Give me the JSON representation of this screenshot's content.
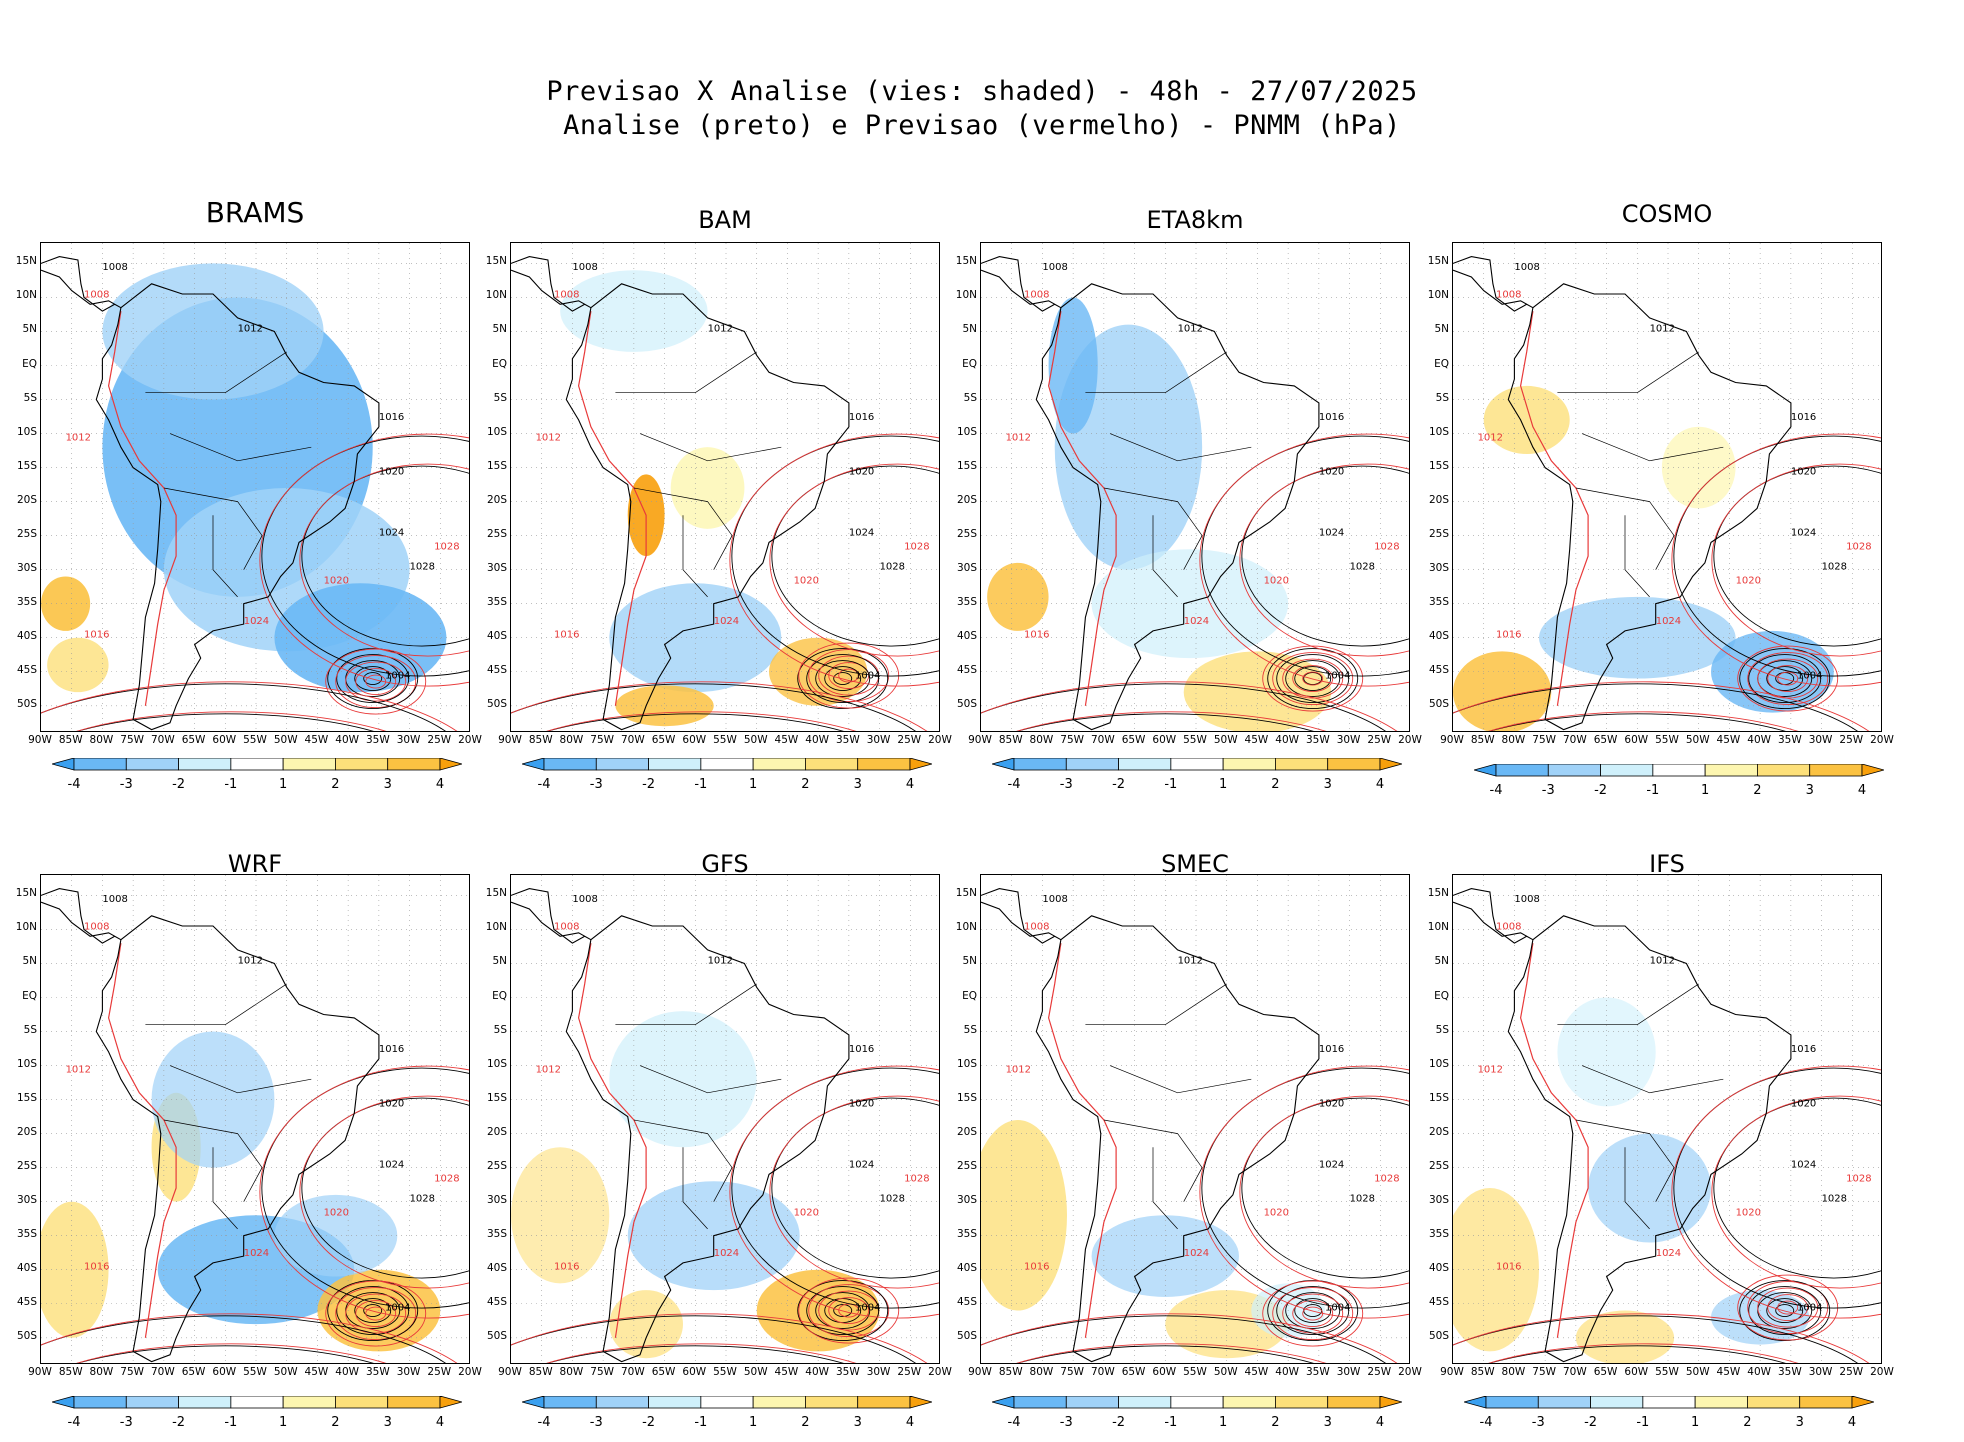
{
  "title": {
    "line1": "Previsao X Analise (vies: shaded) - 48h - 27/07/2025",
    "line2": "Analise (preto) e Previsao (vermelho) - PNMM (hPa)"
  },
  "panels": [
    {
      "name": "BRAMS"
    },
    {
      "name": "BAM"
    },
    {
      "name": "ETA8km"
    },
    {
      "name": "COSMO"
    },
    {
      "name": "WRF"
    },
    {
      "name": "GFS"
    },
    {
      "name": "SMEC"
    },
    {
      "name": "IFS"
    }
  ],
  "lat_labels": [
    "15N",
    "10N",
    "5N",
    "EQ",
    "5S",
    "10S",
    "15S",
    "20S",
    "25S",
    "30S",
    "35S",
    "40S",
    "45S",
    "50S"
  ],
  "lon_labels": [
    "90W",
    "85W",
    "80W",
    "75W",
    "70W",
    "65W",
    "60W",
    "55W",
    "50W",
    "45W",
    "40W",
    "35W",
    "30W",
    "25W",
    "20W"
  ],
  "colorbar": {
    "labels": [
      "-4",
      "-3",
      "-2",
      "-1",
      "1",
      "2",
      "3",
      "4"
    ],
    "colors": [
      "#3aa0f0",
      "#6ab8f5",
      "#a0d2f8",
      "#cff0fb",
      "#ffffff",
      "#fdf6b0",
      "#fde07a",
      "#fbc242",
      "#f8a00c"
    ]
  },
  "contour_labels": {
    "analysis": [
      "1008",
      "1012",
      "1016",
      "1020",
      "1024",
      "1028",
      "1004"
    ],
    "forecast": [
      "1008",
      "1012",
      "1016",
      "1020",
      "1024",
      "1028"
    ]
  },
  "colors": {
    "analysis": "#000000",
    "forecast": "#e83a3a",
    "coast": "#000000"
  }
}
